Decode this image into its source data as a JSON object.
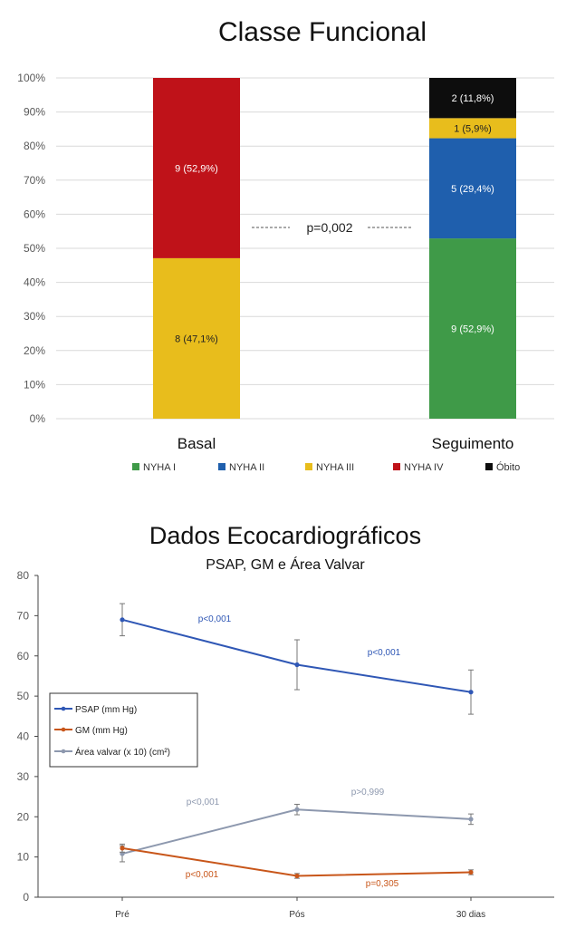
{
  "chart_data": [
    {
      "type": "bar",
      "stacked": true,
      "percent": true,
      "title": "Classe Funcional",
      "categories": [
        "Basal",
        "Seguimento"
      ],
      "ylim": [
        0,
        100
      ],
      "yticks": [
        "0%",
        "10%",
        "20%",
        "30%",
        "40%",
        "50%",
        "60%",
        "70%",
        "80%",
        "90%",
        "100%"
      ],
      "grid": true,
      "legend_position": "bottom",
      "annotation": "p=0,002",
      "series": [
        {
          "name": "NYHA I",
          "color": "#3f9a48",
          "values": [
            0,
            52.9
          ],
          "labels": [
            "",
            "9 (52,9%)"
          ]
        },
        {
          "name": "NYHA II",
          "color": "#1f5fad",
          "values": [
            0,
            29.4
          ],
          "labels": [
            "",
            "5 (29,4%)"
          ]
        },
        {
          "name": "NYHA III",
          "color": "#e8bd1c",
          "values": [
            47.1,
            5.9
          ],
          "labels": [
            "8 (47,1%)",
            "1 (5,9%)"
          ]
        },
        {
          "name": "NYHA IV",
          "color": "#bf1219",
          "values": [
            52.9,
            0
          ],
          "labels": [
            "9 (52,9%)",
            ""
          ]
        },
        {
          "name": "Óbito",
          "color": "#0d0d0d",
          "values": [
            0,
            11.8
          ],
          "labels": [
            "",
            "2 (11,8%)"
          ]
        }
      ]
    },
    {
      "type": "line",
      "title": "Dados Ecocardiográficos",
      "subtitle": "PSAP, GM e Área Valvar",
      "categories": [
        "Pré",
        "Pós",
        "30 dias"
      ],
      "ylim": [
        0,
        80
      ],
      "yticks": [
        0,
        10,
        20,
        30,
        40,
        50,
        60,
        70,
        80
      ],
      "grid": false,
      "legend_position": "left",
      "series": [
        {
          "name": "PSAP (mm Hg)",
          "color": "#2f57b5",
          "values": [
            69,
            57.8,
            51
          ],
          "err": [
            4,
            6.2,
            5.5
          ]
        },
        {
          "name": "GM (mm Hg)",
          "color": "#c8561a",
          "values": [
            12.2,
            5.3,
            6.2
          ],
          "err": [
            1,
            0.6,
            0.6
          ]
        },
        {
          "name": "Área valvar (x 10) (cm²)",
          "color": "#8d98ae",
          "values": [
            10.8,
            21.8,
            19.4
          ],
          "err": [
            2,
            1.3,
            1.3
          ]
        }
      ],
      "annotations": [
        {
          "text": "p<0,001",
          "series": 0,
          "between": [
            0,
            1
          ],
          "color": "#2f57b5"
        },
        {
          "text": "p<0,001",
          "series": 0,
          "between": [
            1,
            2
          ],
          "color": "#2f57b5"
        },
        {
          "text": "p<0,001",
          "series": 2,
          "between": [
            0,
            1
          ],
          "color": "#8d98ae"
        },
        {
          "text": "p>0,999",
          "series": 2,
          "between": [
            1,
            2
          ],
          "color": "#8d98ae"
        },
        {
          "text": "p<0,001",
          "series": 1,
          "between": [
            0,
            1
          ],
          "color": "#c8561a"
        },
        {
          "text": "p=0,305",
          "series": 1,
          "between": [
            1,
            2
          ],
          "color": "#c8561a"
        }
      ]
    }
  ]
}
